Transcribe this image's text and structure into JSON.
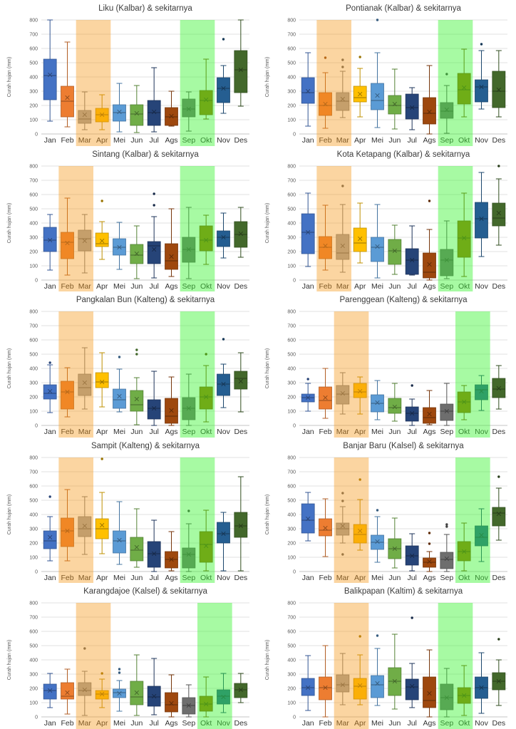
{
  "page": {
    "background": "#ffffff"
  },
  "months": [
    "Jan",
    "Feb",
    "Mar",
    "Apr",
    "Mei",
    "Jun",
    "Jul",
    "Ags",
    "Sep",
    "Okt",
    "Nov",
    "Des"
  ],
  "month_colors": [
    "#4472C4",
    "#ED7D31",
    "#A5A5A5",
    "#FFC000",
    "#5B9BD5",
    "#70AD47",
    "#264478",
    "#9E480E",
    "#6E6E6E",
    "#997300",
    "#255E91",
    "#43682B"
  ],
  "highlight_colors": {
    "orange": "rgba(245,150,20,0.40)",
    "green": "rgba(60,245,50,0.45)"
  },
  "axis": {
    "y_label": "Curah hujan (mm)",
    "y_ticks": [
      "0",
      "100",
      "200",
      "300",
      "400",
      "500",
      "600",
      "700",
      "800"
    ],
    "y_min": 0,
    "y_max": 800,
    "grid_color": "#E2E2E2",
    "zero_line_color": "#C6C6C6",
    "tick_text_color": "#595959",
    "title_color": "#3B3B3B",
    "x_label_color": "#333333"
  },
  "box_schema": [
    "low",
    "q1",
    "median",
    "q3",
    "high",
    "mean",
    "outliers"
  ],
  "chart_data": [
    {
      "type": "box",
      "title": "Liku (Kalbar) & sekitarnya",
      "highlight_orange": [
        "Mar",
        "Apr"
      ],
      "highlight_green": [
        "Sep",
        "Okt"
      ],
      "boxes": [
        [
          90,
          240,
          410,
          525,
          800,
          415,
          []
        ],
        [
          50,
          120,
          230,
          335,
          645,
          255,
          []
        ],
        [
          30,
          75,
          105,
          165,
          295,
          135,
          []
        ],
        [
          30,
          85,
          135,
          180,
          275,
          135,
          []
        ],
        [
          15,
          90,
          150,
          205,
          355,
          155,
          []
        ],
        [
          10,
          60,
          140,
          205,
          340,
          145,
          []
        ],
        [
          15,
          60,
          150,
          235,
          465,
          155,
          []
        ],
        [
          55,
          60,
          120,
          185,
          300,
          125,
          []
        ],
        [
          20,
          120,
          175,
          245,
          295,
          175,
          []
        ],
        [
          105,
          135,
          235,
          305,
          525,
          240,
          []
        ],
        [
          145,
          220,
          320,
          395,
          480,
          320,
          [
            665
          ]
        ],
        [
          195,
          290,
          450,
          585,
          800,
          450,
          []
        ]
      ]
    },
    {
      "type": "box",
      "title": "Pontianak (Kalbar) & sekitarnya",
      "highlight_orange": [
        "Feb",
        "Mar"
      ],
      "highlight_green": [
        "Sep",
        "Okt"
      ],
      "boxes": [
        [
          55,
          215,
          290,
          395,
          570,
          300,
          []
        ],
        [
          40,
          130,
          200,
          290,
          430,
          210,
          [
            535
          ]
        ],
        [
          115,
          165,
          230,
          290,
          440,
          245,
          [
            470,
            520
          ]
        ],
        [
          120,
          225,
          255,
          335,
          460,
          280,
          [
            540
          ]
        ],
        [
          45,
          170,
          235,
          355,
          570,
          270,
          [
            800
          ]
        ],
        [
          35,
          140,
          200,
          270,
          455,
          210,
          []
        ],
        [
          30,
          105,
          185,
          280,
          325,
          185,
          []
        ],
        [
          0,
          70,
          145,
          255,
          480,
          155,
          []
        ],
        [
          5,
          110,
          160,
          220,
          340,
          170,
          [
            420
          ]
        ],
        [
          120,
          210,
          310,
          425,
          595,
          325,
          []
        ],
        [
          175,
          225,
          330,
          380,
          585,
          330,
          [
            630
          ]
        ],
        [
          120,
          185,
          300,
          440,
          585,
          310,
          []
        ]
      ]
    },
    {
      "type": "box",
      "title": "Sintang (Kalbar) & sekitarnya",
      "highlight_orange": [
        "Feb",
        "Mar"
      ],
      "highlight_green": [
        "Sep",
        "Okt"
      ],
      "boxes": [
        [
          70,
          200,
          280,
          370,
          460,
          280,
          []
        ],
        [
          35,
          150,
          265,
          335,
          575,
          260,
          []
        ],
        [
          50,
          205,
          290,
          350,
          460,
          275,
          []
        ],
        [
          145,
          235,
          255,
          330,
          410,
          275,
          [
            555
          ]
        ],
        [
          75,
          175,
          230,
          290,
          405,
          230,
          []
        ],
        [
          10,
          115,
          175,
          250,
          380,
          185,
          []
        ],
        [
          15,
          115,
          240,
          270,
          445,
          215,
          [
            525,
            605
          ]
        ],
        [
          25,
          75,
          135,
          255,
          500,
          165,
          []
        ],
        [
          10,
          125,
          215,
          300,
          510,
          215,
          []
        ],
        [
          110,
          205,
          280,
          380,
          455,
          280,
          []
        ],
        [
          155,
          235,
          300,
          345,
          470,
          300,
          []
        ],
        [
          160,
          230,
          320,
          410,
          510,
          325,
          []
        ]
      ]
    },
    {
      "type": "box",
      "title": "Kota Ketapang (Kalbar) & sekitarnya",
      "highlight_orange": [
        "Feb",
        "Mar"
      ],
      "highlight_green": [
        "Sep",
        "Okt"
      ],
      "boxes": [
        [
          95,
          185,
          335,
          465,
          610,
          335,
          []
        ],
        [
          70,
          150,
          230,
          305,
          525,
          240,
          []
        ],
        [
          55,
          145,
          190,
          320,
          530,
          240,
          [
            660
          ]
        ],
        [
          120,
          200,
          260,
          365,
          540,
          290,
          []
        ],
        [
          15,
          130,
          230,
          300,
          530,
          235,
          []
        ],
        [
          40,
          110,
          205,
          285,
          385,
          205,
          []
        ],
        [
          35,
          40,
          140,
          220,
          380,
          140,
          []
        ],
        [
          0,
          15,
          55,
          190,
          355,
          110,
          [
            555
          ]
        ],
        [
          10,
          30,
          140,
          215,
          415,
          140,
          []
        ],
        [
          25,
          160,
          295,
          415,
          610,
          295,
          []
        ],
        [
          165,
          295,
          430,
          545,
          755,
          430,
          []
        ],
        [
          245,
          380,
          435,
          540,
          710,
          470,
          [
            800
          ]
        ]
      ]
    },
    {
      "type": "box",
      "title": "Pangkalan Bun (Kalteng) & sekitarnya",
      "highlight_orange": [
        "Feb",
        "Mar"
      ],
      "highlight_green": [
        "Sep",
        "Okt"
      ],
      "boxes": [
        [
          90,
          185,
          225,
          285,
          425,
          240,
          [
            440
          ]
        ],
        [
          60,
          115,
          235,
          310,
          405,
          235,
          []
        ],
        [
          115,
          210,
          265,
          360,
          545,
          300,
          []
        ],
        [
          130,
          265,
          305,
          370,
          510,
          305,
          []
        ],
        [
          95,
          120,
          180,
          255,
          395,
          205,
          [
            480
          ]
        ],
        [
          5,
          100,
          145,
          245,
          335,
          185,
          [
            500,
            530
          ]
        ],
        [
          0,
          45,
          120,
          180,
          380,
          120,
          []
        ],
        [
          0,
          15,
          65,
          190,
          340,
          105,
          []
        ],
        [
          0,
          40,
          120,
          195,
          360,
          120,
          []
        ],
        [
          25,
          115,
          200,
          270,
          420,
          200,
          [
            500
          ]
        ],
        [
          125,
          210,
          290,
          360,
          430,
          290,
          [
            605
          ]
        ],
        [
          95,
          255,
          330,
          380,
          510,
          310,
          []
        ]
      ]
    },
    {
      "type": "box",
      "title": "Parenggean (Kalteng) & sekitarnya",
      "highlight_orange": [
        "Mar",
        "Apr"
      ],
      "highlight_green": [
        "Okt",
        "Nov"
      ],
      "boxes": [
        [
          100,
          165,
          195,
          220,
          295,
          195,
          [
            325
          ]
        ],
        [
          50,
          115,
          175,
          270,
          400,
          195,
          []
        ],
        [
          80,
          150,
          220,
          280,
          370,
          225,
          []
        ],
        [
          80,
          195,
          235,
          295,
          340,
          240,
          []
        ],
        [
          40,
          95,
          155,
          215,
          315,
          160,
          []
        ],
        [
          30,
          85,
          125,
          190,
          295,
          130,
          []
        ],
        [
          0,
          30,
          85,
          130,
          185,
          85,
          [
            280
          ]
        ],
        [
          5,
          15,
          55,
          125,
          245,
          80,
          []
        ],
        [
          0,
          35,
          100,
          150,
          295,
          100,
          []
        ],
        [
          40,
          90,
          165,
          235,
          280,
          165,
          []
        ],
        [
          105,
          180,
          250,
          285,
          350,
          240,
          []
        ],
        [
          115,
          195,
          255,
          330,
          420,
          260,
          []
        ]
      ]
    },
    {
      "type": "box",
      "title": "Sampit (Kalteng) & sekitarnya",
      "highlight_orange": [
        "Feb",
        "Mar"
      ],
      "highlight_green": [
        "Sep",
        "Okt"
      ],
      "boxes": [
        [
          75,
          160,
          215,
          285,
          385,
          240,
          [
            525
          ]
        ],
        [
          75,
          175,
          285,
          375,
          575,
          285,
          []
        ],
        [
          120,
          245,
          300,
          385,
          525,
          320,
          []
        ],
        [
          125,
          230,
          300,
          370,
          555,
          325,
          [
            790
          ]
        ],
        [
          50,
          130,
          215,
          285,
          490,
          220,
          []
        ],
        [
          30,
          75,
          150,
          240,
          440,
          170,
          []
        ],
        [
          0,
          30,
          125,
          210,
          360,
          125,
          []
        ],
        [
          5,
          25,
          85,
          140,
          280,
          85,
          []
        ],
        [
          0,
          25,
          120,
          165,
          335,
          120,
          [
            425
          ]
        ],
        [
          5,
          65,
          190,
          280,
          430,
          180,
          []
        ],
        [
          5,
          200,
          265,
          345,
          415,
          265,
          []
        ],
        [
          5,
          240,
          320,
          415,
          665,
          320,
          []
        ]
      ]
    },
    {
      "type": "box",
      "title": "Banjar Baru (Kalsel) & sekitarnya",
      "highlight_orange": [
        "Mar",
        "Apr"
      ],
      "highlight_green": [
        "Okt",
        "Nov"
      ],
      "boxes": [
        [
          215,
          270,
          360,
          475,
          555,
          370,
          []
        ],
        [
          105,
          250,
          290,
          370,
          510,
          305,
          []
        ],
        [
          200,
          255,
          300,
          340,
          455,
          320,
          [
            120,
            495,
            550
          ]
        ],
        [
          150,
          200,
          260,
          330,
          505,
          285,
          [
            645
          ]
        ],
        [
          65,
          155,
          205,
          255,
          385,
          210,
          [
            430
          ]
        ],
        [
          25,
          90,
          160,
          230,
          375,
          160,
          []
        ],
        [
          5,
          45,
          110,
          180,
          265,
          110,
          []
        ],
        [
          0,
          30,
          65,
          95,
          140,
          70,
          [
            195,
            270
          ]
        ],
        [
          0,
          20,
          85,
          135,
          260,
          90,
          [
            315,
            330
          ]
        ],
        [
          5,
          75,
          140,
          210,
          340,
          140,
          []
        ],
        [
          70,
          180,
          240,
          320,
          440,
          255,
          []
        ],
        [
          220,
          320,
          410,
          450,
          585,
          405,
          [
            665
          ]
        ]
      ]
    },
    {
      "type": "box",
      "title": "Karangdajoe (Kalsel) & sekitarnya",
      "highlight_orange": [
        "Mar",
        "Apr"
      ],
      "highlight_green": [
        "Okt",
        "Nov"
      ],
      "boxes": [
        [
          65,
          125,
          185,
          230,
          305,
          185,
          []
        ],
        [
          20,
          125,
          145,
          240,
          335,
          170,
          []
        ],
        [
          10,
          150,
          185,
          240,
          320,
          190,
          [
            480
          ]
        ],
        [
          65,
          125,
          160,
          185,
          265,
          160,
          [
            305
          ]
        ],
        [
          40,
          135,
          170,
          195,
          255,
          165,
          [
            310,
            335
          ]
        ],
        [
          10,
          85,
          140,
          250,
          435,
          170,
          []
        ],
        [
          15,
          75,
          140,
          215,
          410,
          145,
          []
        ],
        [
          0,
          35,
          85,
          170,
          295,
          95,
          []
        ],
        [
          0,
          20,
          80,
          135,
          225,
          80,
          []
        ],
        [
          0,
          40,
          90,
          145,
          280,
          90,
          []
        ],
        [
          30,
          90,
          145,
          190,
          305,
          140,
          []
        ],
        [
          100,
          135,
          190,
          235,
          305,
          190,
          []
        ]
      ]
    },
    {
      "type": "box",
      "title": "Balikpapan (Kaltim) & sekitarnya",
      "highlight_orange": [
        "Mar",
        "Apr"
      ],
      "highlight_green": [
        "Sep",
        "Okt"
      ],
      "boxes": [
        [
          45,
          150,
          205,
          270,
          430,
          205,
          []
        ],
        [
          0,
          120,
          205,
          280,
          500,
          205,
          []
        ],
        [
          85,
          175,
          225,
          295,
          445,
          225,
          []
        ],
        [
          85,
          125,
          215,
          270,
          435,
          220,
          [
            565
          ]
        ],
        [
          80,
          135,
          225,
          290,
          480,
          235,
          [
            570
          ]
        ],
        [
          55,
          150,
          250,
          345,
          580,
          250,
          []
        ],
        [
          65,
          120,
          210,
          265,
          375,
          215,
          [
            695
          ]
        ],
        [
          0,
          65,
          115,
          280,
          470,
          165,
          []
        ],
        [
          0,
          50,
          135,
          230,
          340,
          135,
          []
        ],
        [
          10,
          95,
          150,
          205,
          360,
          150,
          []
        ],
        [
          25,
          130,
          205,
          280,
          450,
          205,
          []
        ],
        [
          80,
          190,
          250,
          310,
          400,
          250,
          [
            545
          ]
        ]
      ]
    }
  ]
}
